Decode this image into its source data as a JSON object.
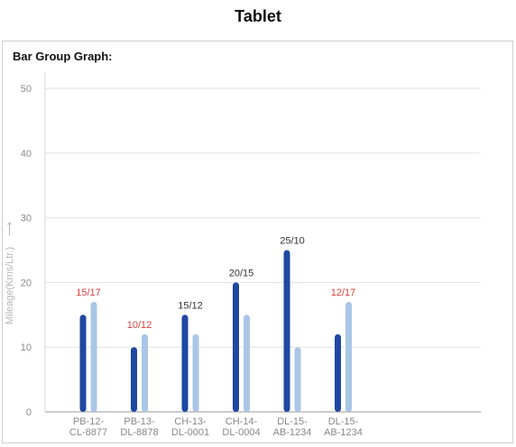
{
  "header": {
    "title": "Tablet"
  },
  "card": {
    "title": "Bar Group Graph:"
  },
  "chart_data": {
    "type": "bar",
    "title": "Bar Group Graph:",
    "ylabel": "Mileage(Kms/Ltr.)",
    "ylabel_arrow": "⟶",
    "xlabel": "",
    "ylim": [
      0,
      50
    ],
    "yticks": [
      0,
      10,
      20,
      30,
      40,
      50
    ],
    "grid": true,
    "categories": [
      [
        "PB-12-",
        "CL-8877"
      ],
      [
        "PB-13-",
        "DL-8878"
      ],
      [
        "CH-13-",
        "DL-0001"
      ],
      [
        "CH-14-",
        "DL-0004"
      ],
      [
        "DL-15-",
        "AB-1234"
      ],
      [
        "DL-15-",
        "AB-1234"
      ]
    ],
    "series": [
      {
        "values": [
          15,
          10,
          15,
          20,
          25,
          12
        ],
        "color": "#1f48a3"
      },
      {
        "values": [
          17,
          12,
          12,
          15,
          10,
          17
        ],
        "color": "#a9c6e6"
      }
    ],
    "data_labels": [
      {
        "text": "15/17",
        "color": "#d9403b"
      },
      {
        "text": "10/12",
        "color": "#d9403b"
      },
      {
        "text": "15/12",
        "color": "#333333"
      },
      {
        "text": "20/15",
        "color": "#333333"
      },
      {
        "text": "25/10",
        "color": "#333333"
      },
      {
        "text": "12/17",
        "color": "#d9403b"
      }
    ]
  }
}
